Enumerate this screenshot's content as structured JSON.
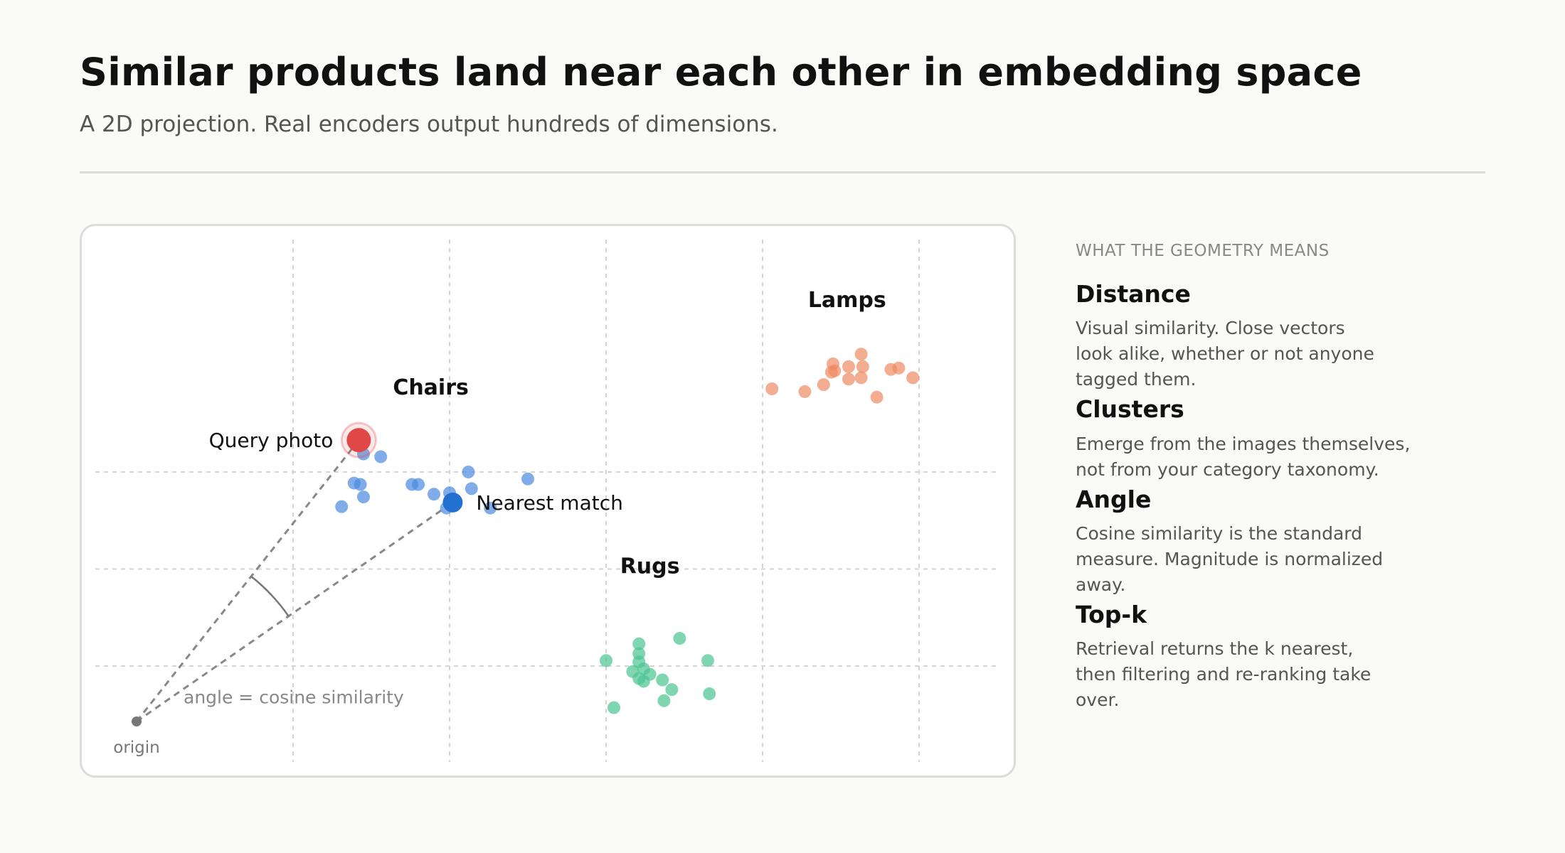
{
  "header": {
    "title": "Similar products land near each other in embedding space",
    "subtitle": "A 2D projection. Real encoders output hundreds of dimensions."
  },
  "chart_data": {
    "type": "scatter",
    "title": "",
    "xlabel": "",
    "ylabel": "",
    "grid": true,
    "xlim": [
      0,
      6
    ],
    "ylim": [
      0,
      4
    ],
    "origin": {
      "x": 0.0,
      "y": 0.0,
      "label": "origin"
    },
    "clusters": [
      {
        "name": "Chairs",
        "color": "#4a8ae0",
        "points": [
          [
            1.45,
            1.93
          ],
          [
            1.56,
            1.91
          ],
          [
            1.39,
            1.72
          ],
          [
            1.43,
            1.71
          ],
          [
            1.45,
            1.62
          ],
          [
            1.31,
            1.55
          ],
          [
            1.76,
            1.71
          ],
          [
            1.8,
            1.71
          ],
          [
            1.9,
            1.64
          ],
          [
            2.0,
            1.65
          ],
          [
            2.12,
            1.8
          ],
          [
            2.14,
            1.68
          ],
          [
            1.98,
            1.54
          ],
          [
            2.26,
            1.54
          ],
          [
            2.5,
            1.75
          ]
        ]
      },
      {
        "name": "Lamps",
        "color": "#ee8a62",
        "points": [
          [
            4.06,
            2.4
          ],
          [
            4.39,
            2.43
          ],
          [
            4.27,
            2.38
          ],
          [
            4.45,
            2.58
          ],
          [
            4.46,
            2.53
          ],
          [
            4.55,
            2.56
          ],
          [
            4.63,
            2.65
          ],
          [
            4.64,
            2.56
          ],
          [
            4.55,
            2.47
          ],
          [
            4.63,
            2.48
          ],
          [
            4.73,
            2.34
          ],
          [
            4.82,
            2.54
          ],
          [
            4.87,
            2.55
          ],
          [
            4.96,
            2.48
          ],
          [
            4.44,
            2.52
          ]
        ]
      },
      {
        "name": "Rugs",
        "color": "#4cc592",
        "points": [
          [
            3.0,
            0.44
          ],
          [
            3.21,
            0.56
          ],
          [
            3.21,
            0.49
          ],
          [
            3.21,
            0.43
          ],
          [
            3.17,
            0.36
          ],
          [
            3.24,
            0.38
          ],
          [
            3.28,
            0.34
          ],
          [
            3.21,
            0.31
          ],
          [
            3.24,
            0.29
          ],
          [
            3.36,
            0.3
          ],
          [
            3.42,
            0.23
          ],
          [
            3.37,
            0.15
          ],
          [
            3.05,
            0.1
          ],
          [
            3.47,
            0.6
          ],
          [
            3.65,
            0.44
          ],
          [
            3.66,
            0.2
          ]
        ]
      }
    ],
    "query": {
      "label": "Query photo",
      "x": 1.42,
      "y": 2.03,
      "color": "#e04848"
    },
    "nearest": {
      "label": "Nearest match",
      "x": 2.02,
      "y": 1.58,
      "color": "#2270d0"
    },
    "annotation": "angle = cosine similarity"
  },
  "panel": {
    "heading": "WHAT THE GEOMETRY MEANS",
    "items": [
      {
        "title": "Distance",
        "lines": [
          "Visual similarity. Close vectors",
          "look alike, whether or not anyone",
          "tagged them."
        ]
      },
      {
        "title": "Clusters",
        "lines": [
          "Emerge from the images themselves,",
          "not from your category taxonomy."
        ]
      },
      {
        "title": "Angle",
        "lines": [
          "Cosine similarity is the standard",
          "measure. Magnitude is normalized",
          "away."
        ]
      },
      {
        "title": "Top-k",
        "lines": [
          "Retrieval returns the k nearest,",
          "then filtering and re-ranking take",
          "over."
        ]
      }
    ]
  }
}
